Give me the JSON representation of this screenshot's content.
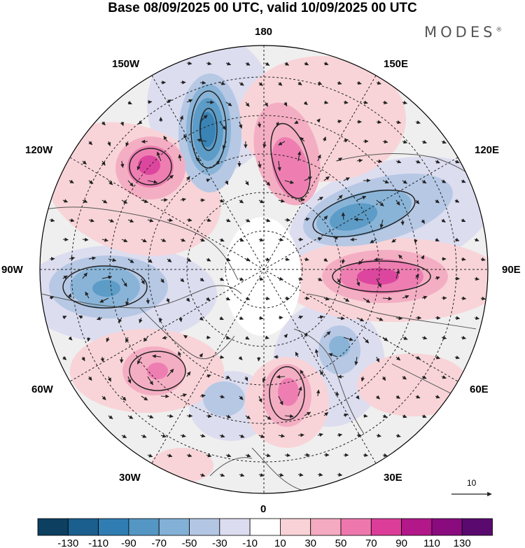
{
  "title": "Base 08/09/2025 00 UTC, valid 10/09/2025 00 UTC",
  "brand": "MODES",
  "brand_mark": "®",
  "longitudes": {
    "lon_180": "180",
    "lon_150e": "150E",
    "lon_120e": "120E",
    "lon_90e": "90E",
    "lon_60e": "60E",
    "lon_30e": "30E",
    "lon_0": "0",
    "lon_30w": "30W",
    "lon_60w": "60W",
    "lon_90w": "90W",
    "lon_120w": "120W",
    "lon_150w": "150W"
  },
  "reference_vector": {
    "value": "10"
  },
  "colorbar": {
    "labels": [
      "-130",
      "-110",
      "-90",
      "-70",
      "-50",
      "-30",
      "-10",
      "10",
      "30",
      "50",
      "70",
      "90",
      "110",
      "130"
    ],
    "colors": [
      "#0c3f60",
      "#1a5f8e",
      "#2f7db2",
      "#5497c5",
      "#83b0d6",
      "#b3c6e3",
      "#dcdcf0",
      "#ffffff",
      "#f8d2d6",
      "#f4aac0",
      "#ee78ad",
      "#dc3d99",
      "#b3188a",
      "#8a0b7e",
      "#5a0a6e"
    ]
  },
  "colors": {
    "neutral_fill": "#efefef",
    "arrow": "#222222"
  }
}
